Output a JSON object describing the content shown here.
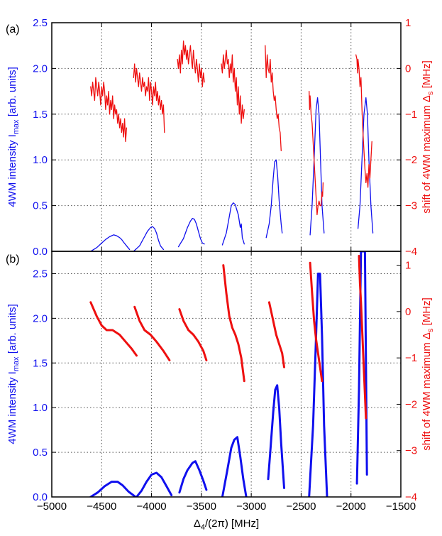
{
  "colors": {
    "blue": "#1010ee",
    "red": "#ee1010",
    "grid": "#555555",
    "axis": "#000000"
  },
  "chart_data": [
    {
      "type": "line",
      "panel": "(a)",
      "xlabel": "",
      "ylabel_left": "4WM intensity I_max [arb. units]",
      "ylabel_right": "shift of 4WM maximum Δ_s [MHz]",
      "xlim": [
        -5000,
        -1500
      ],
      "ylim_left": [
        0.0,
        2.5
      ],
      "ylim_right": [
        -4,
        1
      ],
      "xticks": [
        -5000,
        -4500,
        -4000,
        -3500,
        -3000,
        -2500,
        -2000,
        -1500
      ],
      "yticks_left": [
        "0.0",
        "0.5",
        "1.0",
        "1.5",
        "2.0",
        "2.5"
      ],
      "yticks_right": [
        "-4",
        "-3",
        "-2",
        "-1",
        "0",
        "1"
      ],
      "grid": true,
      "series": [
        {
          "name": "blue-1",
          "axis": "left",
          "color": "blue",
          "width": 1.3,
          "x": [
            -4610,
            -4550,
            -4500,
            -4460,
            -4420,
            -4400,
            -4380,
            -4350,
            -4320,
            -4300,
            -4280,
            -4250,
            -4220
          ],
          "y": [
            0.0,
            0.04,
            0.09,
            0.13,
            0.16,
            0.17,
            0.18,
            0.17,
            0.15,
            0.13,
            0.1,
            0.06,
            0.02
          ]
        },
        {
          "name": "blue-2",
          "axis": "left",
          "color": "blue",
          "width": 1.3,
          "x": [
            -4180,
            -4120,
            -4080,
            -4040,
            -4010,
            -3990,
            -3970,
            -3950,
            -3930,
            -3910,
            -3880
          ],
          "y": [
            0.0,
            0.06,
            0.14,
            0.22,
            0.26,
            0.27,
            0.25,
            0.2,
            0.12,
            0.06,
            0.02
          ]
        },
        {
          "name": "blue-3",
          "axis": "left",
          "color": "blue",
          "width": 1.3,
          "x": [
            -3730,
            -3680,
            -3640,
            -3610,
            -3590,
            -3570,
            -3550,
            -3530,
            -3510,
            -3490,
            -3470
          ],
          "y": [
            0.05,
            0.14,
            0.26,
            0.33,
            0.36,
            0.35,
            0.3,
            0.22,
            0.14,
            0.09,
            0.08
          ]
        },
        {
          "name": "blue-4",
          "axis": "left",
          "color": "blue",
          "width": 1.3,
          "x": [
            -3290,
            -3250,
            -3220,
            -3200,
            -3180,
            -3160,
            -3150,
            -3130,
            -3110,
            -3100,
            -3090,
            -3070
          ],
          "y": [
            0.07,
            0.2,
            0.38,
            0.5,
            0.53,
            0.51,
            0.47,
            0.4,
            0.26,
            0.3,
            0.15,
            0.08
          ]
        },
        {
          "name": "blue-5",
          "axis": "left",
          "color": "blue",
          "width": 1.3,
          "x": [
            -2850,
            -2820,
            -2800,
            -2780,
            -2765,
            -2750,
            -2735,
            -2720,
            -2700,
            -2690
          ],
          "y": [
            0.15,
            0.3,
            0.5,
            0.8,
            0.98,
            1.0,
            0.82,
            0.55,
            0.3,
            0.2
          ]
        },
        {
          "name": "blue-6",
          "axis": "left",
          "color": "blue",
          "width": 1.3,
          "x": [
            -2410,
            -2390,
            -2370,
            -2350,
            -2335,
            -2320,
            -2305,
            -2290,
            -2270
          ],
          "y": [
            0.18,
            0.5,
            1.0,
            1.55,
            1.68,
            1.5,
            1.0,
            0.5,
            0.2
          ]
        },
        {
          "name": "blue-7",
          "axis": "left",
          "color": "blue",
          "width": 1.3,
          "x": [
            -1930,
            -1910,
            -1890,
            -1870,
            -1850,
            -1835,
            -1820,
            -1800,
            -1780
          ],
          "y": [
            0.25,
            0.5,
            1.0,
            1.5,
            1.68,
            1.5,
            1.0,
            0.5,
            0.2
          ]
        },
        {
          "name": "red-1",
          "axis": "right",
          "color": "red",
          "width": 1.3,
          "x": [
            -4610,
            -4600,
            -4590,
            -4580,
            -4570,
            -4560,
            -4550,
            -4540,
            -4530,
            -4520,
            -4510,
            -4500,
            -4490,
            -4480,
            -4470,
            -4460,
            -4450,
            -4440,
            -4430,
            -4420,
            -4410,
            -4400,
            -4390,
            -4380,
            -4370,
            -4360,
            -4350,
            -4340,
            -4330,
            -4320,
            -4310,
            -4300,
            -4290,
            -4280,
            -4270,
            -4260,
            -4250
          ],
          "y": [
            -0.4,
            -0.6,
            -0.3,
            -0.5,
            -0.7,
            -0.2,
            -0.4,
            -0.6,
            -0.3,
            -0.5,
            -0.8,
            -0.4,
            -0.6,
            -0.3,
            -0.5,
            -0.9,
            -0.6,
            -0.8,
            -0.5,
            -1.0,
            -0.7,
            -0.9,
            -0.6,
            -1.1,
            -0.8,
            -1.0,
            -0.9,
            -1.2,
            -1.0,
            -1.3,
            -1.1,
            -1.4,
            -1.2,
            -1.5,
            -1.1,
            -1.6,
            -1.3
          ]
        },
        {
          "name": "red-2",
          "axis": "right",
          "color": "red",
          "width": 1.3,
          "x": [
            -4180,
            -4170,
            -4160,
            -4150,
            -4140,
            -4130,
            -4120,
            -4110,
            -4100,
            -4090,
            -4080,
            -4070,
            -4060,
            -4050,
            -4040,
            -4030,
            -4020,
            -4010,
            -4000,
            -3990,
            -3980,
            -3970,
            -3960,
            -3950,
            -3940,
            -3930,
            -3920,
            -3910,
            -3900,
            -3890,
            -3880,
            -3870
          ],
          "y": [
            -0.2,
            0.1,
            -0.3,
            0.0,
            -0.2,
            -0.4,
            -0.1,
            -0.3,
            -0.5,
            -0.2,
            -0.4,
            -0.3,
            -0.6,
            -0.4,
            -0.5,
            -0.2,
            -0.7,
            -0.3,
            -0.5,
            -0.8,
            -0.4,
            -0.6,
            -0.3,
            -0.7,
            -0.5,
            -0.8,
            -0.6,
            -0.9,
            -0.7,
            -1.0,
            -0.8,
            -1.4
          ]
        },
        {
          "name": "red-3",
          "axis": "right",
          "color": "red",
          "width": 1.3,
          "x": [
            -3740,
            -3730,
            -3720,
            -3710,
            -3700,
            -3690,
            -3680,
            -3670,
            -3660,
            -3650,
            -3640,
            -3630,
            -3620,
            -3610,
            -3600,
            -3590,
            -3580,
            -3570,
            -3560,
            -3550,
            -3540,
            -3530,
            -3520,
            -3510,
            -3500,
            -3490,
            -3480,
            -3470
          ],
          "y": [
            0.2,
            0.0,
            0.3,
            -0.1,
            0.4,
            0.1,
            0.6,
            0.3,
            0.5,
            0.2,
            0.4,
            0.1,
            0.3,
            0.5,
            0.2,
            0.0,
            0.4,
            0.1,
            -0.1,
            0.2,
            0.0,
            -0.3,
            0.1,
            -0.2,
            0.0,
            -0.4,
            -0.1,
            -0.3
          ]
        },
        {
          "name": "red-4",
          "axis": "right",
          "color": "red",
          "width": 1.3,
          "x": [
            -3300,
            -3290,
            -3280,
            -3270,
            -3260,
            -3250,
            -3240,
            -3230,
            -3220,
            -3210,
            -3200,
            -3190,
            -3180,
            -3170,
            -3160,
            -3150,
            -3140,
            -3130,
            -3120,
            -3110,
            -3100,
            -3090,
            -3080,
            -3070
          ],
          "y": [
            0.1,
            -0.1,
            0.3,
            0.0,
            0.2,
            0.4,
            0.1,
            0.2,
            -0.2,
            0.1,
            -0.1,
            0.3,
            -0.3,
            0.0,
            -0.5,
            -0.2,
            -0.8,
            -0.4,
            -1.0,
            -0.6,
            -1.2,
            -0.8,
            -1.1,
            -0.9
          ]
        },
        {
          "name": "red-5",
          "axis": "right",
          "color": "red",
          "width": 1.3,
          "x": [
            -2860,
            -2850,
            -2840,
            -2830,
            -2820,
            -2810,
            -2800,
            -2790,
            -2780,
            -2770,
            -2760,
            -2750,
            -2740,
            -2730,
            -2720,
            -2710,
            -2700
          ],
          "y": [
            0.5,
            -0.2,
            0.3,
            0.0,
            -0.1,
            0.2,
            -0.3,
            -0.1,
            -0.5,
            -0.7,
            -0.6,
            -0.9,
            -1.1,
            -1.0,
            -1.3,
            -1.4,
            -1.8
          ]
        },
        {
          "name": "red-6",
          "axis": "right",
          "color": "red",
          "width": 1.3,
          "x": [
            -2420,
            -2415,
            -2410,
            -2400,
            -2390,
            -2380,
            -2370,
            -2360,
            -2350,
            -2340,
            -2330,
            -2320,
            -2310,
            -2300,
            -2290,
            -2285,
            -2280
          ],
          "y": [
            -0.5,
            -0.9,
            -0.6,
            -1.0,
            -1.2,
            -1.6,
            -2.0,
            -2.4,
            -2.8,
            -3.2,
            -3.0,
            -2.9,
            -3.0,
            -3.0,
            -2.7,
            -2.8,
            -2.5
          ]
        },
        {
          "name": "red-7",
          "axis": "right",
          "color": "red",
          "width": 1.3,
          "x": [
            -1950,
            -1940,
            -1935,
            -1930,
            -1920,
            -1910,
            -1900,
            -1890,
            -1880,
            -1870,
            -1860,
            -1850,
            -1840,
            -1830,
            -1820,
            -1810,
            -1800,
            -1790
          ],
          "y": [
            0.3,
            0.2,
            -0.1,
            0.2,
            0.0,
            -0.4,
            -0.2,
            -0.9,
            -1.4,
            -1.8,
            -2.2,
            -2.5,
            -2.3,
            -2.6,
            -2.1,
            -2.4,
            -2.0,
            -1.6
          ]
        }
      ]
    },
    {
      "type": "line",
      "panel": "(b)",
      "xlabel": "Δ_4/(2π) [MHz]",
      "ylabel_left": "4WM intensity I_max [arb. units]",
      "ylabel_right": "shift of 4WM maximum Δ_s [MHz]",
      "xlim": [
        -5000,
        -1500
      ],
      "ylim_left": [
        0.0,
        2.75
      ],
      "ylim_right": [
        -4,
        1.3
      ],
      "xticks": [
        -5000,
        -4500,
        -4000,
        -3500,
        -3000,
        -2500,
        -2000,
        -1500
      ],
      "yticks_left": [
        "0.0",
        "0.5",
        "1.0",
        "1.5",
        "2.0",
        "2.5"
      ],
      "yticks_right": [
        "-4",
        "-3",
        "-2",
        "-1",
        "0",
        "1"
      ],
      "grid": true,
      "series": [
        {
          "name": "blue-1",
          "axis": "left",
          "color": "blue",
          "width": 3,
          "x": [
            -4610,
            -4540,
            -4470,
            -4400,
            -4340,
            -4290,
            -4230,
            -4160
          ],
          "y": [
            0.0,
            0.05,
            0.12,
            0.17,
            0.17,
            0.13,
            0.06,
            0.0
          ]
        },
        {
          "name": "blue-2",
          "axis": "left",
          "color": "blue",
          "width": 3,
          "x": [
            -4150,
            -4100,
            -4050,
            -4000,
            -3950,
            -3900,
            -3850,
            -3800
          ],
          "y": [
            0.0,
            0.07,
            0.17,
            0.25,
            0.27,
            0.22,
            0.12,
            0.02
          ]
        },
        {
          "name": "blue-3",
          "axis": "left",
          "color": "blue",
          "width": 3,
          "x": [
            -3720,
            -3680,
            -3640,
            -3590,
            -3560,
            -3520,
            -3480,
            -3450
          ],
          "y": [
            0.05,
            0.2,
            0.3,
            0.38,
            0.4,
            0.3,
            0.18,
            0.08
          ]
        },
        {
          "name": "blue-4",
          "axis": "left",
          "color": "blue",
          "width": 3,
          "x": [
            -3290,
            -3240,
            -3200,
            -3170,
            -3140,
            -3110,
            -3080,
            -3050
          ],
          "y": [
            0.0,
            0.3,
            0.55,
            0.64,
            0.67,
            0.45,
            0.2,
            0.0
          ]
        },
        {
          "name": "blue-5",
          "axis": "left",
          "color": "blue",
          "width": 3,
          "x": [
            -2830,
            -2810,
            -2780,
            -2760,
            -2740,
            -2720,
            -2700,
            -2670
          ],
          "y": [
            0.2,
            0.5,
            0.95,
            1.2,
            1.25,
            1.0,
            0.6,
            0.1
          ]
        },
        {
          "name": "blue-6",
          "axis": "left",
          "color": "blue",
          "width": 3,
          "x": [
            -2420,
            -2380,
            -2350,
            -2330,
            -2310,
            -2290,
            -2270,
            -2240
          ],
          "y": [
            0.0,
            0.8,
            1.8,
            2.5,
            2.5,
            1.8,
            0.8,
            0.0
          ]
        },
        {
          "name": "blue-7",
          "axis": "left",
          "color": "blue",
          "width": 3,
          "x": [
            -1940,
            -1920,
            -1900,
            -1880,
            -1860,
            -1850,
            -1840
          ],
          "y": [
            0.15,
            1.2,
            2.75,
            2.75,
            2.75,
            1.5,
            0.25
          ]
        },
        {
          "name": "red-1",
          "axis": "right",
          "color": "red",
          "width": 3,
          "x": [
            -4610,
            -4550,
            -4500,
            -4450,
            -4390,
            -4320,
            -4260,
            -4200,
            -4150
          ],
          "y": [
            0.2,
            -0.1,
            -0.3,
            -0.4,
            -0.4,
            -0.5,
            -0.65,
            -0.8,
            -0.95
          ]
        },
        {
          "name": "red-2",
          "axis": "right",
          "color": "red",
          "width": 3,
          "x": [
            -4170,
            -4120,
            -4070,
            -4010,
            -3950,
            -3880,
            -3820
          ],
          "y": [
            0.1,
            -0.2,
            -0.4,
            -0.5,
            -0.65,
            -0.85,
            -1.05
          ]
        },
        {
          "name": "red-3",
          "axis": "right",
          "color": "red",
          "width": 3,
          "x": [
            -3720,
            -3680,
            -3630,
            -3580,
            -3530,
            -3480,
            -3450
          ],
          "y": [
            0.05,
            -0.2,
            -0.4,
            -0.5,
            -0.65,
            -0.85,
            -1.05
          ]
        },
        {
          "name": "red-4",
          "axis": "right",
          "color": "red",
          "width": 3,
          "x": [
            -3280,
            -3250,
            -3220,
            -3190,
            -3160,
            -3130,
            -3100,
            -3070
          ],
          "y": [
            1.0,
            0.4,
            -0.1,
            -0.35,
            -0.5,
            -0.7,
            -1.0,
            -1.5
          ]
        },
        {
          "name": "red-5",
          "axis": "right",
          "color": "red",
          "width": 3,
          "x": [
            -2820,
            -2790,
            -2770,
            -2750,
            -2720,
            -2690,
            -2670
          ],
          "y": [
            0.2,
            -0.1,
            -0.3,
            -0.5,
            -0.7,
            -0.9,
            -1.2
          ]
        },
        {
          "name": "red-6",
          "axis": "right",
          "color": "red",
          "width": 3,
          "x": [
            -2410,
            -2390,
            -2370,
            -2350,
            -2330,
            -2310,
            -2290
          ],
          "y": [
            1.05,
            0.4,
            -0.2,
            -0.6,
            -0.9,
            -1.2,
            -1.5
          ]
        },
        {
          "name": "red-7",
          "axis": "right",
          "color": "red",
          "width": 3,
          "x": [
            -1920,
            -1910,
            -1900,
            -1890,
            -1880,
            -1870,
            -1860,
            -1850
          ],
          "y": [
            1.2,
            0.6,
            0.2,
            -0.3,
            -0.8,
            -1.3,
            -1.8,
            -2.3
          ]
        }
      ]
    }
  ]
}
